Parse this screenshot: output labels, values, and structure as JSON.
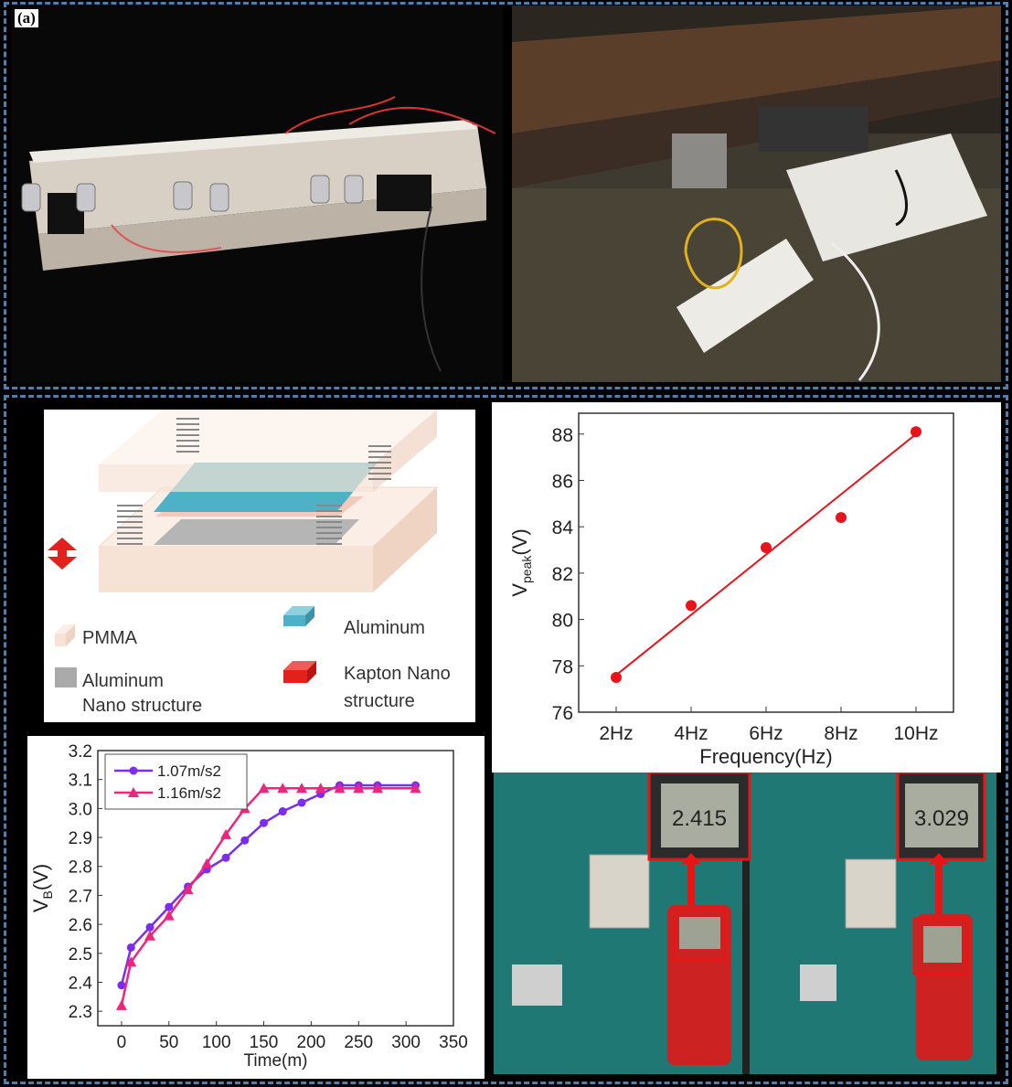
{
  "figure": {
    "panel_label": "(a)",
    "border_color": "#4f7fae"
  },
  "diagram": {
    "legend": [
      {
        "label": "PMMA",
        "color": "#f7e2d6"
      },
      {
        "label": "Aluminum",
        "color": "#4fb1c7"
      },
      {
        "label_line1": "Aluminum",
        "label_line2": "Nano structure",
        "color": "#9a9a9a"
      },
      {
        "label_line1": "Kapton Nano",
        "label_line2": "structure",
        "color": "#e3201b"
      }
    ],
    "arrow_color": "#e3201b"
  },
  "meters": {
    "reading_left": "2.415",
    "reading_right": "3.029"
  },
  "chart_data": [
    {
      "type": "scatter",
      "xlabel": "Frequency(Hz)",
      "ylabel": "V",
      "ylabel_sub": "peak",
      "ylabel_unit": "(V)",
      "categories": [
        "2Hz",
        "4Hz",
        "6Hz",
        "8Hz",
        "10Hz"
      ],
      "x": [
        2,
        4,
        6,
        8,
        10
      ],
      "y": [
        77.5,
        80.6,
        83.1,
        84.4,
        88.1
      ],
      "fit_line": {
        "x": [
          2,
          10
        ],
        "y": [
          77.6,
          88.0
        ]
      },
      "yticks": [
        76,
        78,
        80,
        82,
        84,
        86,
        88
      ],
      "xlim": [
        1,
        11
      ],
      "ylim": [
        76,
        88.9
      ],
      "color": "#e8141b",
      "grid": false
    },
    {
      "type": "line",
      "xlabel": "Time(m)",
      "ylabel": "V",
      "ylabel_sub": "B",
      "ylabel_unit": "(V)",
      "xticks": [
        0,
        50,
        100,
        150,
        200,
        250,
        300,
        350
      ],
      "yticks": [
        2.3,
        2.4,
        2.5,
        2.6,
        2.7,
        2.8,
        2.9,
        3.0,
        3.1,
        3.2
      ],
      "xlim": [
        -25,
        350
      ],
      "ylim": [
        2.25,
        3.2
      ],
      "grid": false,
      "legend_position": "top-left",
      "series": [
        {
          "name": "1.07m/s2",
          "marker": "circle",
          "color": "#7b2cf0",
          "x": [
            0,
            10,
            30,
            50,
            70,
            90,
            110,
            130,
            150,
            170,
            190,
            210,
            230,
            250,
            270,
            310
          ],
          "y": [
            2.39,
            2.52,
            2.59,
            2.66,
            2.73,
            2.79,
            2.83,
            2.89,
            2.95,
            2.99,
            3.02,
            3.05,
            3.08,
            3.08,
            3.08,
            3.08
          ]
        },
        {
          "name": "1.16m/s2",
          "marker": "triangle",
          "color": "#f0247c",
          "x": [
            0,
            10,
            30,
            50,
            70,
            90,
            110,
            130,
            150,
            170,
            190,
            210,
            230,
            250,
            270,
            310
          ],
          "y": [
            2.32,
            2.47,
            2.56,
            2.63,
            2.72,
            2.81,
            2.91,
            3.0,
            3.07,
            3.07,
            3.07,
            3.07,
            3.07,
            3.07,
            3.07,
            3.07
          ]
        }
      ]
    }
  ]
}
